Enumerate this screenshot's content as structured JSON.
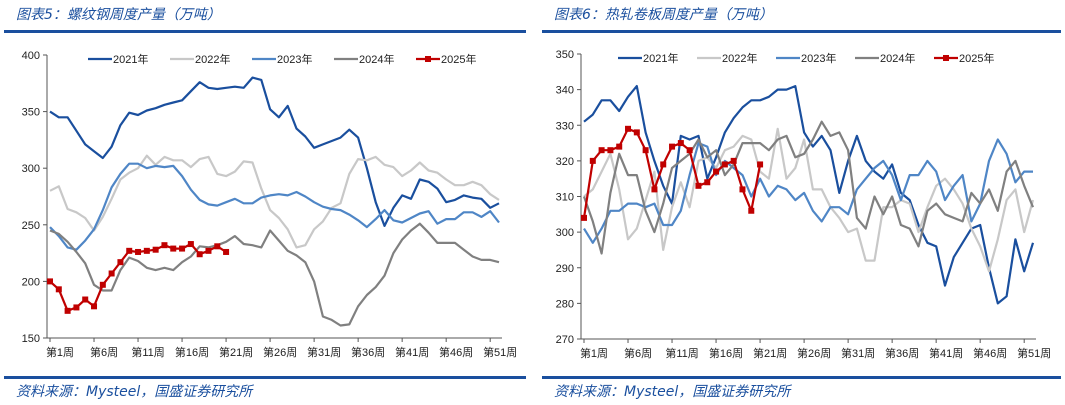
{
  "chart_data": [
    {
      "type": "line",
      "title": "图表5：螺纹钢周度产量（万吨）",
      "source": "资料来源：Mysteel，国盛证券研究所",
      "xlabel": "",
      "ylabel": "",
      "ylim": [
        150,
        400
      ],
      "yticks": [
        150,
        200,
        250,
        300,
        350,
        400
      ],
      "xtick_labels": [
        "第1周",
        "第6周",
        "第11周",
        "第16周",
        "第21周",
        "第26周",
        "第31周",
        "第36周",
        "第41周",
        "第46周",
        "第51周"
      ],
      "legend_position": "top",
      "series": [
        {
          "name": "2021年",
          "color": "#1a4f9e",
          "values": [
            350,
            345,
            345,
            333,
            321,
            315,
            309,
            319,
            338,
            349,
            347,
            351,
            353,
            356,
            358,
            360,
            368,
            376,
            371,
            370,
            371,
            372,
            371,
            380,
            378,
            352,
            345,
            355,
            335,
            328,
            318,
            321,
            324,
            327,
            334,
            327,
            300,
            270,
            249,
            265,
            276,
            273,
            290,
            288,
            282,
            270,
            272,
            276,
            274,
            273,
            265,
            269
          ]
        },
        {
          "name": "2022年",
          "color": "#c8c8c8",
          "values": [
            280,
            284,
            264,
            261,
            256,
            245,
            257,
            273,
            290,
            296,
            300,
            311,
            303,
            310,
            307,
            307,
            301,
            308,
            310,
            295,
            293,
            297,
            306,
            305,
            282,
            263,
            256,
            246,
            230,
            232,
            246,
            253,
            265,
            269,
            295,
            308,
            307,
            310,
            303,
            301,
            293,
            298,
            305,
            298,
            296,
            290,
            285,
            285,
            288,
            285,
            277,
            272
          ]
        },
        {
          "name": "2023年",
          "color": "#4f86c6",
          "values": [
            248,
            240,
            230,
            228,
            236,
            246,
            263,
            283,
            295,
            304,
            304,
            300,
            302,
            301,
            302,
            293,
            281,
            272,
            268,
            267,
            270,
            273,
            269,
            269,
            274,
            276,
            277,
            276,
            279,
            275,
            270,
            266,
            264,
            263,
            259,
            254,
            248,
            255,
            263,
            254,
            252,
            256,
            260,
            262,
            251,
            255,
            255,
            261,
            261,
            257,
            262,
            252
          ]
        },
        {
          "name": "2024年",
          "color": "#808080",
          "values": [
            245,
            242,
            235,
            226,
            216,
            197,
            192,
            192,
            210,
            221,
            218,
            212,
            210,
            212,
            210,
            217,
            222,
            231,
            230,
            232,
            235,
            240,
            233,
            232,
            230,
            245,
            236,
            227,
            223,
            217,
            200,
            169,
            166,
            161,
            162,
            178,
            188,
            195,
            205,
            225,
            237,
            245,
            251,
            243,
            234,
            234,
            234,
            228,
            222,
            219,
            219,
            217
          ]
        },
        {
          "name": "2025年",
          "color": "#c00000",
          "markers": true,
          "values": [
            200,
            193,
            174,
            177,
            184,
            178,
            197,
            207,
            217,
            227,
            226,
            227,
            228,
            232,
            229,
            229,
            233,
            224,
            227,
            231,
            226
          ]
        }
      ]
    },
    {
      "type": "line",
      "title": "图表6：热轧卷板周度产量（万吨）",
      "source": "资料来源：Mysteel，国盛证券研究所",
      "xlabel": "",
      "ylabel": "",
      "ylim": [
        270,
        350
      ],
      "yticks": [
        270,
        280,
        290,
        300,
        310,
        320,
        330,
        340,
        350
      ],
      "xtick_labels": [
        "第1周",
        "第6周",
        "第11周",
        "第16周",
        "第21周",
        "第26周",
        "第31周",
        "第36周",
        "第41周",
        "第46周",
        "第51周"
      ],
      "legend_position": "top",
      "series": [
        {
          "name": "2021年",
          "color": "#1a4f9e",
          "values": [
            331,
            333,
            337,
            337,
            334,
            338,
            341,
            328,
            320,
            313,
            308,
            327,
            326,
            327,
            315,
            321,
            328,
            332,
            335,
            337,
            337,
            338,
            340,
            340,
            341,
            328,
            324,
            327,
            323,
            311,
            320,
            327,
            320,
            317,
            315,
            319,
            311,
            309,
            302,
            297,
            296,
            285,
            293,
            297,
            301,
            302,
            290,
            280,
            282,
            298,
            289,
            297
          ]
        },
        {
          "name": "2022年",
          "color": "#c8c8c8",
          "values": [
            310,
            312,
            317,
            322,
            312,
            298,
            301,
            309,
            317,
            295,
            307,
            314,
            307,
            320,
            321,
            318,
            323,
            324,
            327,
            326,
            317,
            315,
            329,
            315,
            318,
            326,
            312,
            312,
            307,
            304,
            300,
            301,
            292,
            292,
            307,
            307,
            309,
            308,
            300,
            307,
            313,
            315,
            312,
            308,
            301,
            296,
            289,
            298,
            309,
            312,
            300,
            309
          ]
        },
        {
          "name": "2023年",
          "color": "#4f86c6",
          "values": [
            301,
            297,
            301,
            306,
            306,
            308,
            308,
            307,
            308,
            302,
            302,
            306,
            316,
            325,
            324,
            316,
            320,
            318,
            316,
            310,
            315,
            310,
            313,
            312,
            309,
            311,
            306,
            303,
            307,
            307,
            305,
            312,
            315,
            318,
            320,
            316,
            309,
            316,
            316,
            320,
            317,
            309,
            313,
            316,
            303,
            308,
            320,
            326,
            322,
            314,
            317,
            317
          ]
        },
        {
          "name": "2024年",
          "color": "#808080",
          "values": [
            310,
            303,
            294,
            311,
            322,
            316,
            316,
            306,
            300,
            308,
            318,
            320,
            322,
            326,
            321,
            323,
            316,
            319,
            325,
            325,
            325,
            323,
            326,
            327,
            321,
            322,
            326,
            331,
            327,
            328,
            323,
            304,
            301,
            310,
            305,
            310,
            302,
            301,
            296,
            306,
            308,
            305,
            304,
            303,
            311,
            308,
            312,
            306,
            317,
            320,
            313,
            307
          ]
        },
        {
          "name": "2025年",
          "color": "#c00000",
          "markers": true,
          "values": [
            304,
            320,
            323,
            323,
            324,
            329,
            328,
            323,
            312,
            319,
            324,
            325,
            323,
            313,
            314,
            317,
            319,
            320,
            312,
            306,
            319
          ]
        }
      ]
    }
  ]
}
